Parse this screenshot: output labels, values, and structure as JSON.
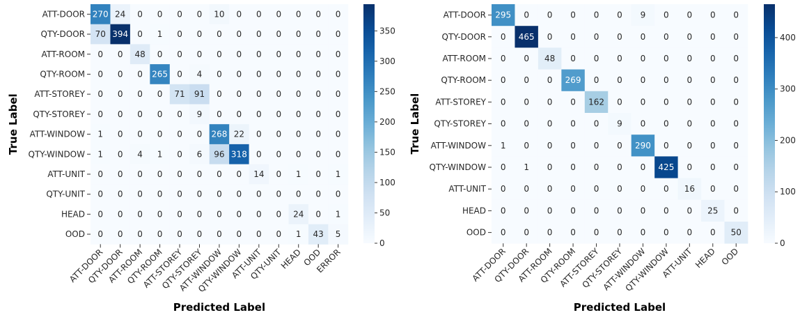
{
  "chart_data": [
    {
      "type": "heatmap",
      "title": "",
      "xlabel": "Predicted Label",
      "ylabel": "True Label",
      "rows": [
        "ATT-DOOR",
        "QTY-DOOR",
        "ATT-ROOM",
        "QTY-ROOM",
        "ATT-STOREY",
        "QTY-STOREY",
        "ATT-WINDOW",
        "QTY-WINDOW",
        "ATT-UNIT",
        "QTY-UNIT",
        "HEAD",
        "OOD"
      ],
      "cols": [
        "ATT-DOOR",
        "QTY-DOOR",
        "ATT-ROOM",
        "QTY-ROOM",
        "ATT-STOREY",
        "QTY-STOREY",
        "ATT-WINDOW",
        "QTY-WINDOW",
        "ATT-UNIT",
        "QTY-UNIT",
        "HEAD",
        "OOD",
        "ERROR"
      ],
      "values": [
        [
          270,
          24,
          0,
          0,
          0,
          0,
          10,
          0,
          0,
          0,
          0,
          0,
          0
        ],
        [
          70,
          394,
          0,
          1,
          0,
          0,
          0,
          0,
          0,
          0,
          0,
          0,
          0
        ],
        [
          0,
          0,
          48,
          0,
          0,
          0,
          0,
          0,
          0,
          0,
          0,
          0,
          0
        ],
        [
          0,
          0,
          0,
          265,
          0,
          4,
          0,
          0,
          0,
          0,
          0,
          0,
          0
        ],
        [
          0,
          0,
          0,
          0,
          71,
          91,
          0,
          0,
          0,
          0,
          0,
          0,
          0
        ],
        [
          0,
          0,
          0,
          0,
          0,
          9,
          0,
          0,
          0,
          0,
          0,
          0,
          0
        ],
        [
          1,
          0,
          0,
          0,
          0,
          0,
          268,
          22,
          0,
          0,
          0,
          0,
          0
        ],
        [
          1,
          0,
          4,
          1,
          0,
          6,
          96,
          318,
          0,
          0,
          0,
          0,
          0
        ],
        [
          0,
          0,
          0,
          0,
          0,
          0,
          0,
          0,
          14,
          0,
          1,
          0,
          1
        ],
        [
          0,
          0,
          0,
          0,
          0,
          0,
          0,
          0,
          0,
          0,
          0,
          0,
          0
        ],
        [
          0,
          0,
          0,
          0,
          0,
          0,
          0,
          0,
          0,
          0,
          24,
          0,
          1
        ],
        [
          0,
          0,
          0,
          0,
          0,
          0,
          0,
          0,
          0,
          0,
          1,
          43,
          5
        ]
      ],
      "colorbar": {
        "vmin": 0,
        "vmax": 394,
        "ticks": [
          0,
          50,
          100,
          150,
          200,
          250,
          300,
          350
        ]
      },
      "colormap": "Blues"
    },
    {
      "type": "heatmap",
      "title": "",
      "xlabel": "Predicted Label",
      "ylabel": "True Label",
      "rows": [
        "ATT-DOOR",
        "QTY-DOOR",
        "ATT-ROOM",
        "QTY-ROOM",
        "ATT-STOREY",
        "QTY-STOREY",
        "ATT-WINDOW",
        "QTY-WINDOW",
        "ATT-UNIT",
        "HEAD",
        "OOD"
      ],
      "cols": [
        "ATT-DOOR",
        "QTY-DOOR",
        "ATT-ROOM",
        "QTY-ROOM",
        "ATT-STOREY",
        "QTY-STOREY",
        "ATT-WINDOW",
        "QTY-WINDOW",
        "ATT-UNIT",
        "HEAD",
        "OOD"
      ],
      "values": [
        [
          295,
          0,
          0,
          0,
          0,
          0,
          9,
          0,
          0,
          0,
          0
        ],
        [
          0,
          465,
          0,
          0,
          0,
          0,
          0,
          0,
          0,
          0,
          0
        ],
        [
          0,
          0,
          48,
          0,
          0,
          0,
          0,
          0,
          0,
          0,
          0
        ],
        [
          0,
          0,
          0,
          269,
          0,
          0,
          0,
          0,
          0,
          0,
          0
        ],
        [
          0,
          0,
          0,
          0,
          162,
          0,
          0,
          0,
          0,
          0,
          0
        ],
        [
          0,
          0,
          0,
          0,
          0,
          9,
          0,
          0,
          0,
          0,
          0
        ],
        [
          1,
          0,
          0,
          0,
          0,
          0,
          290,
          0,
          0,
          0,
          0
        ],
        [
          0,
          1,
          0,
          0,
          0,
          0,
          0,
          425,
          0,
          0,
          0
        ],
        [
          0,
          0,
          0,
          0,
          0,
          0,
          0,
          0,
          16,
          0,
          0
        ],
        [
          0,
          0,
          0,
          0,
          0,
          0,
          0,
          0,
          0,
          25,
          0
        ],
        [
          0,
          0,
          0,
          0,
          0,
          0,
          0,
          0,
          0,
          0,
          50
        ]
      ],
      "colorbar": {
        "vmin": 0,
        "vmax": 465,
        "ticks": [
          0,
          100,
          200,
          300,
          400
        ]
      },
      "colormap": "Blues"
    }
  ]
}
